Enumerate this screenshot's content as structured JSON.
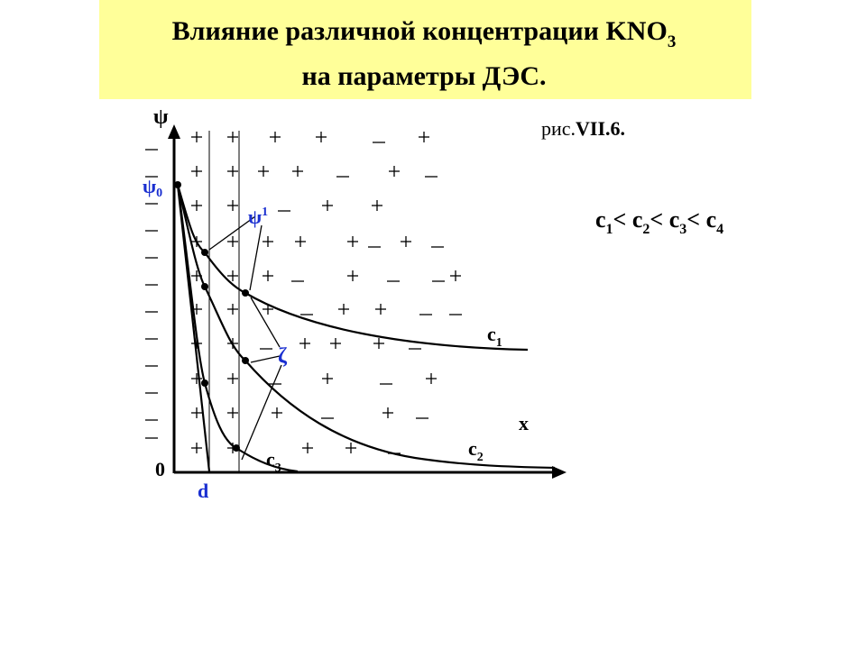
{
  "title": {
    "line1": "Влияние различной концентрации KNO",
    "line1_sub": "3",
    "line2": "на параметры ДЭС."
  },
  "figure_label": {
    "prefix": "рис.",
    "number": "VII.6."
  },
  "inequality": {
    "sign": "< ",
    "terms": [
      {
        "base": "c",
        "sub": "1"
      },
      {
        "base": "c",
        "sub": "2"
      },
      {
        "base": "c",
        "sub": "3"
      },
      {
        "base": "c",
        "sub": "4"
      }
    ]
  },
  "diagram": {
    "y_axis_label": "ψ",
    "x_axis_label": "x",
    "origin_label": "0",
    "d_label": "d",
    "psi0": {
      "base": "ψ",
      "sub": "0"
    },
    "psi1": {
      "base": "ψ",
      "sup": "1"
    },
    "zeta": "ζ",
    "curves": [
      {
        "base": "c",
        "sub": "1"
      },
      {
        "base": "c",
        "sub": "2"
      },
      {
        "base": "c",
        "sub": "3"
      }
    ]
  }
}
